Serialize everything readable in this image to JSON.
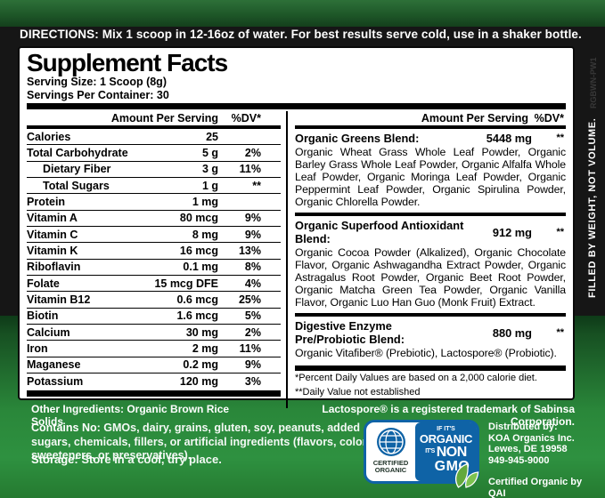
{
  "directions": {
    "label": "DIRECTIONS:",
    "text": " Mix 1 scoop in 12-16oz of water.  For best results serve cold, use in a shaker bottle."
  },
  "side_text": "FILLED BY WEIGHT, NOT VOLUME.",
  "side_code": "RGBWN-PW1",
  "panel": {
    "title": "Supplement Facts",
    "serving_size": "Serving Size: 1 Scoop (8g)",
    "servings_per_container": "Servings Per Container: 30",
    "amount_header": "Amount Per Serving",
    "dv_header": "%DV*",
    "facts": [
      {
        "label": "Calories",
        "amount": "25",
        "dv": "",
        "indent": false
      },
      {
        "label": "Total Carbohydrate",
        "amount": "5 g",
        "dv": "2%",
        "indent": false
      },
      {
        "label": "Dietary Fiber",
        "amount": "3 g",
        "dv": "11%",
        "indent": true
      },
      {
        "label": "Total Sugars",
        "amount": "1 g",
        "dv": "**",
        "indent": true
      },
      {
        "label": "Protein",
        "amount": "1 mg",
        "dv": "",
        "indent": false
      },
      {
        "label": "Vitamin A",
        "amount": "80 mcg",
        "dv": "9%",
        "indent": false
      },
      {
        "label": "Vitamin C",
        "amount": "8 mg",
        "dv": "9%",
        "indent": false
      },
      {
        "label": "Vitamin K",
        "amount": "16 mcg",
        "dv": "13%",
        "indent": false
      },
      {
        "label": "Riboflavin",
        "amount": "0.1 mg",
        "dv": "8%",
        "indent": false
      },
      {
        "label": "Folate",
        "amount": "15 mcg DFE",
        "dv": "4%",
        "indent": false
      },
      {
        "label": "Vitamin B12",
        "amount": "0.6 mcg",
        "dv": "25%",
        "indent": false
      },
      {
        "label": "Biotin",
        "amount": "1.6 mcg",
        "dv": "5%",
        "indent": false
      },
      {
        "label": "Calcium",
        "amount": "30 mg",
        "dv": "2%",
        "indent": false
      },
      {
        "label": "Iron",
        "amount": "2 mg",
        "dv": "11%",
        "indent": false
      },
      {
        "label": "Maganese",
        "amount": "0.2 mg",
        "dv": "9%",
        "indent": false
      },
      {
        "label": "Potassium",
        "amount": "120 mg",
        "dv": "3%",
        "indent": false
      }
    ],
    "blends": [
      {
        "name": "Organic Greens Blend:",
        "amount": "5448 mg",
        "dv": "**",
        "desc": "Organic Wheat Grass Whole Leaf Powder, Organic Barley Grass Whole Leaf Powder, Organic Alfalfa Whole Leaf Powder, Organic Moringa Leaf Powder, Organic Peppermint Leaf Powder, Organic Spirulina Powder, Organic Chlorella Powder."
      },
      {
        "name": "Organic Superfood Antioxidant Blend:",
        "amount": "912 mg",
        "dv": "**",
        "desc": "Organic Cocoa Powder (Alkalized), Organic Chocolate Flavor, Organic Ashwagandha Extract Powder, Organic Astragalus Root Powder, Organic Beet Root Powder, Organic Matcha Green Tea Powder, Organic Vanilla Flavor, Organic Luo Han Guo (Monk Fruit) Extract."
      },
      {
        "name": "Digestive Enzyme Pre/Probiotic Blend:",
        "amount": "880 mg",
        "dv": "**",
        "desc": "Organic Vitafiber® (Prebiotic), Lactospore® (Probiotic)."
      }
    ],
    "footnotes": [
      "*Percent Daily Values are based on a 2,000 calorie diet.",
      "**Daily Value not established"
    ]
  },
  "bottom": {
    "other_ingredients_label": "Other Ingredients:",
    "other_ingredients_value": " Organic Brown Rice Solids",
    "trademark": "Lactospore® is a registered trademark of Sabinsa Corporation.",
    "contains_no_label": "Contains No:",
    "contains_no_value": " GMOs, dairy, grains, gluten, soy, peanuts, added sugars, chemicals, fillers, or artificial ingredients (flavors, colors, sweeteners, or preservatives).",
    "storage_label": "Storage:",
    "storage_value": " Store in a cool, dry place.",
    "badge": {
      "certified_line1": "CERTIFIED",
      "certified_line2": "ORGANIC",
      "if_its": "IF IT'S",
      "organic": "ORGANIC",
      "its": "IT'S",
      "non": "NON",
      "gmo": "GMO"
    },
    "distributor": {
      "label": "Distributed by:",
      "lines": [
        "KOA Organics Inc.",
        "Lewes, DE 19958",
        "949-945-9000"
      ],
      "certified_by": "Certified Organic by QAI"
    }
  },
  "colors": {
    "badge_blue": "#0f63a6",
    "leaf_green": "#63a93c",
    "bottom_green": "#2a873a",
    "top_bar_green": "#1d5527",
    "background_black": "#161616",
    "panel_white": "#ffffff"
  }
}
